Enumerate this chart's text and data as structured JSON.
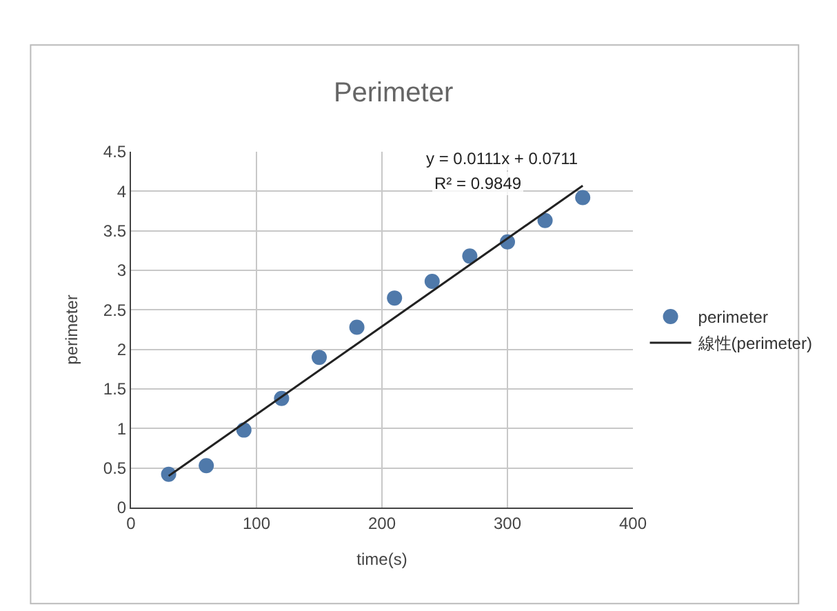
{
  "chart_data": {
    "type": "scatter",
    "title": "Perimeter",
    "xlabel": "time(s)",
    "ylabel": "perimeter",
    "xlim": [
      0,
      400
    ],
    "xticks": [
      0,
      100,
      200,
      300,
      400
    ],
    "ylim": [
      0,
      4.5
    ],
    "yticks": [
      0,
      0.5,
      1,
      1.5,
      2,
      2.5,
      3,
      3.5,
      4,
      4.5
    ],
    "grid": true,
    "legend": "right",
    "annotations": [
      "y = 0.0111x + 0.0711",
      "R² = 0.9849"
    ],
    "series": [
      {
        "name": "perimeter",
        "marker": "circle",
        "color": "#4f79aa",
        "x": [
          30,
          60,
          90,
          120,
          150,
          180,
          210,
          240,
          270,
          300,
          330,
          360
        ],
        "values": [
          0.42,
          0.53,
          0.98,
          1.38,
          1.9,
          2.28,
          2.65,
          2.86,
          3.18,
          3.36,
          3.63,
          3.92
        ]
      },
      {
        "name": "線性(perimeter)",
        "type": "line",
        "color": "#222222",
        "line_style": "solid",
        "x": [
          30,
          360
        ],
        "values": [
          0.4,
          4.07
        ]
      }
    ]
  }
}
